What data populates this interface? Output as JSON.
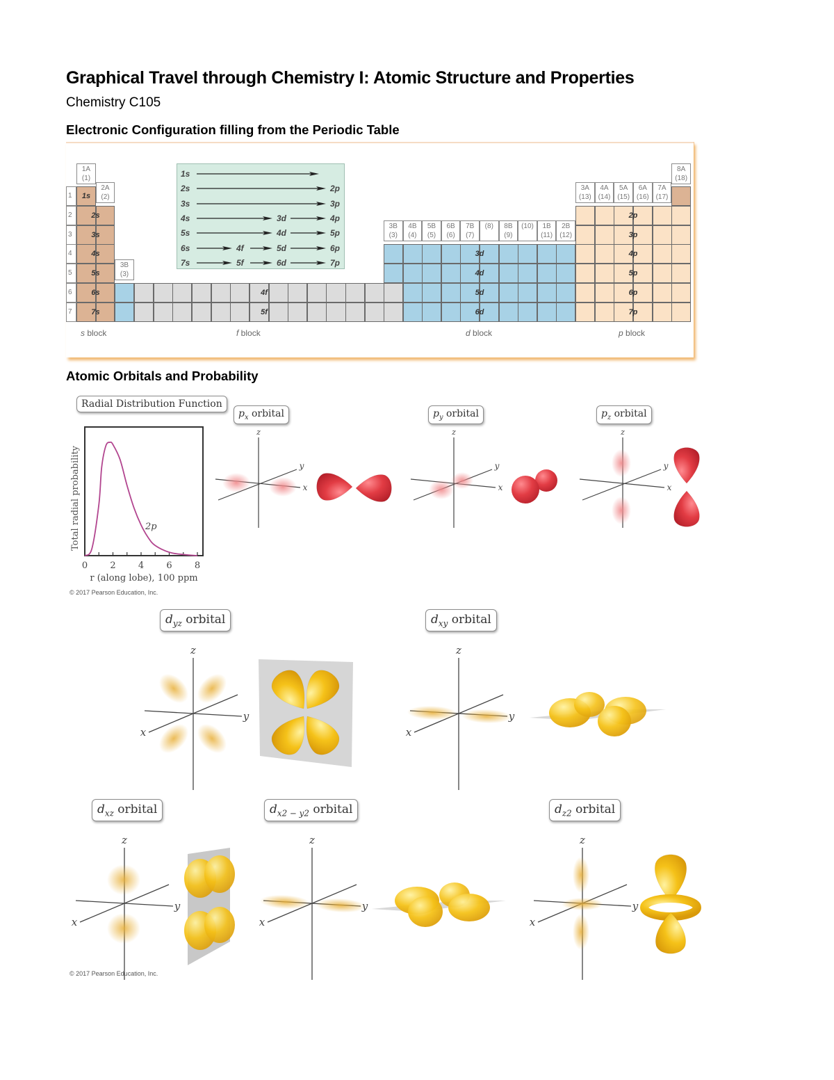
{
  "document": {
    "title": "Graphical Travel through Chemistry I: Atomic Structure and Properties",
    "subtitle": "Chemistry C105",
    "sections": [
      {
        "heading": "Electronic Configuration filling from the Periodic Table"
      },
      {
        "heading": "Atomic Orbitals and Probability"
      }
    ]
  },
  "periodic_table": {
    "colors": {
      "s_block": "#dcb394",
      "d_block": "#a8d2e6",
      "f_block": "#dcdcdc",
      "p_block": "#fbe2c6",
      "filling_box": "#d6ece2",
      "frame_shadow": "#f0b870"
    },
    "periods": [
      "1",
      "2",
      "3",
      "4",
      "5",
      "6",
      "7"
    ],
    "group_headers": {
      "g1": [
        "1A",
        "(1)"
      ],
      "g2": [
        "2A",
        "(2)"
      ],
      "g3_left": [
        "3B",
        "(3)"
      ],
      "d_groups": [
        [
          "3B",
          "(3)"
        ],
        [
          "4B",
          "(4)"
        ],
        [
          "5B",
          "(5)"
        ],
        [
          "6B",
          "(6)"
        ],
        [
          "7B",
          "(7)"
        ],
        [
          "",
          "(8)"
        ],
        [
          "8B",
          "(9)"
        ],
        [
          "",
          "(10)"
        ],
        [
          "1B",
          "(11)"
        ],
        [
          "2B",
          "(12)"
        ]
      ],
      "p_groups": [
        [
          "3A",
          "(13)"
        ],
        [
          "4A",
          "(14)"
        ],
        [
          "5A",
          "(15)"
        ],
        [
          "6A",
          "(16)"
        ],
        [
          "7A",
          "(17)"
        ]
      ],
      "g18": [
        "8A",
        "(18)"
      ]
    },
    "s_labels": [
      "1s",
      "2s",
      "3s",
      "4s",
      "5s",
      "6s",
      "7s"
    ],
    "d_labels": [
      "3d",
      "4d",
      "5d",
      "6d"
    ],
    "f_labels": [
      "4f",
      "5f"
    ],
    "p_labels": [
      "2p",
      "3p",
      "4p",
      "5p",
      "6p",
      "7p"
    ],
    "block_labels": {
      "s": "s",
      "f": "f",
      "d": "d",
      "p": "p",
      "suffix": " block"
    },
    "filling_order": [
      [
        "1s",
        "",
        "",
        ""
      ],
      [
        "2s",
        "",
        "",
        "2p"
      ],
      [
        "3s",
        "",
        "",
        "3p"
      ],
      [
        "4s",
        "",
        "3d",
        "4p"
      ],
      [
        "5s",
        "",
        "4d",
        "5p"
      ],
      [
        "6s",
        "4f",
        "5d",
        "6p"
      ],
      [
        "7s",
        "5f",
        "6d",
        "7p"
      ]
    ]
  },
  "radial_chart": {
    "label": "Radial Distribution Function",
    "copyright": "© 2017 Pearson Education, Inc."
  },
  "chart_data": {
    "type": "line",
    "title": "Radial Distribution Function",
    "xlabel": "r (along lobe), 100 ppm",
    "ylabel": "Total radial probability",
    "xlim": [
      0,
      8
    ],
    "xticks": [
      "0",
      "2",
      "4",
      "6",
      "8"
    ],
    "grid": false,
    "series": [
      {
        "name": "2p",
        "color": "#b2458f",
        "x": [
          0,
          0.5,
          1.0,
          1.2,
          1.5,
          1.8,
          2.0,
          2.5,
          3.0,
          3.5,
          4.0,
          4.5,
          5.0,
          6.0,
          7.0,
          8.0
        ],
        "y": [
          0.0,
          0.06,
          0.45,
          0.78,
          0.97,
          1.0,
          0.98,
          0.85,
          0.62,
          0.42,
          0.27,
          0.16,
          0.09,
          0.03,
          0.01,
          0.0
        ]
      }
    ],
    "annotations": [
      "2p"
    ]
  },
  "orbitals": {
    "p": [
      {
        "id": "px",
        "sub": "x",
        "suffix": " orbital",
        "letter": "p"
      },
      {
        "id": "py",
        "sub": "y",
        "suffix": " orbital",
        "letter": "p"
      },
      {
        "id": "pz",
        "sub": "z",
        "suffix": " orbital",
        "letter": "p"
      }
    ],
    "d": [
      {
        "id": "dyz",
        "sub": "yz",
        "suffix": " orbital",
        "letter": "d"
      },
      {
        "id": "dxy",
        "sub": "xy",
        "suffix": " orbital",
        "letter": "d"
      },
      {
        "id": "dxz",
        "sub": "xz",
        "suffix": " orbital",
        "letter": "d"
      },
      {
        "id": "dx2y2",
        "sub": "x2 − y2",
        "suffix": " orbital",
        "letter": "d"
      },
      {
        "id": "dz2",
        "sub": "z2",
        "suffix": " orbital",
        "letter": "d"
      }
    ],
    "axis_labels": {
      "x": "x",
      "y": "y",
      "z": "z"
    },
    "colors": {
      "p_lobe": "#e23c44",
      "p_cloud": "#f08a8c",
      "d_lobe": "#f5c219",
      "d_cloud": "#e8b03a",
      "plane": "#c8c8c8"
    },
    "copyright": "© 2017 Pearson Education, Inc."
  }
}
